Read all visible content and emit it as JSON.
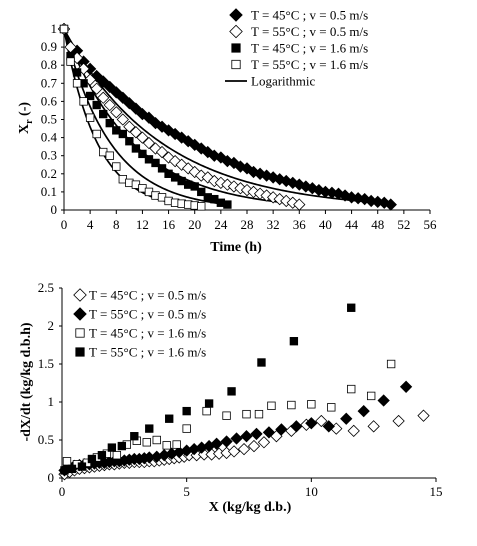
{
  "chart_data": [
    {
      "type": "scatter",
      "xlabel": "Time (h)",
      "ylabel": "Xr (-)",
      "ylabel_main": "X",
      "ylabel_sub": "r",
      "ylabel_unit": " (-)",
      "xlim": [
        0,
        56
      ],
      "ylim": [
        0,
        1
      ],
      "xticks": [
        "0",
        "4",
        "8",
        "12",
        "16",
        "20",
        "24",
        "28",
        "32",
        "36",
        "40",
        "44",
        "48",
        "52",
        "56"
      ],
      "yticks": [
        "0",
        "0.1",
        "0.2",
        "0.3",
        "0.4",
        "0.5",
        "0.6",
        "0.7",
        "0.8",
        "0.9",
        "1"
      ],
      "legend_position": "top-right",
      "series": [
        {
          "name": "T = 45°C ; v = 0.5 m/s",
          "marker": "diamond-filled",
          "x": [
            0,
            2,
            3,
            4,
            5,
            6,
            7,
            8,
            9,
            10,
            11,
            12,
            13,
            14,
            15,
            16,
            17,
            18,
            19,
            20,
            21,
            22,
            23,
            24,
            25,
            26,
            27,
            28,
            29,
            30,
            31,
            32,
            33,
            34,
            35,
            36,
            37,
            38,
            39,
            40,
            41,
            42,
            43,
            44,
            45,
            46,
            47,
            48,
            49,
            50
          ],
          "y": [
            1,
            0.88,
            0.82,
            0.78,
            0.74,
            0.71,
            0.68,
            0.65,
            0.62,
            0.59,
            0.56,
            0.53,
            0.51,
            0.48,
            0.46,
            0.44,
            0.42,
            0.4,
            0.38,
            0.36,
            0.34,
            0.32,
            0.3,
            0.29,
            0.27,
            0.26,
            0.24,
            0.23,
            0.21,
            0.2,
            0.19,
            0.18,
            0.17,
            0.16,
            0.15,
            0.14,
            0.13,
            0.12,
            0.11,
            0.1,
            0.095,
            0.09,
            0.08,
            0.07,
            0.065,
            0.06,
            0.05,
            0.045,
            0.04,
            0.03
          ]
        },
        {
          "name": "T = 55°C ; v = 0.5 m/s",
          "marker": "diamond-open",
          "x": [
            0,
            1,
            2,
            3,
            4,
            5,
            6,
            7,
            8,
            9,
            10,
            11,
            12,
            13,
            14,
            15,
            16,
            17,
            18,
            19,
            20,
            21,
            22,
            23,
            24,
            25,
            26,
            27,
            28,
            29,
            30,
            31,
            32,
            33,
            34,
            35,
            36
          ],
          "y": [
            1,
            0.9,
            0.84,
            0.78,
            0.72,
            0.67,
            0.62,
            0.58,
            0.54,
            0.5,
            0.46,
            0.43,
            0.4,
            0.37,
            0.34,
            0.32,
            0.29,
            0.27,
            0.25,
            0.23,
            0.21,
            0.19,
            0.18,
            0.16,
            0.15,
            0.14,
            0.13,
            0.12,
            0.11,
            0.1,
            0.09,
            0.08,
            0.07,
            0.06,
            0.05,
            0.04,
            0.03
          ]
        },
        {
          "name": "T = 45°C ; v = 1.6 m/s",
          "marker": "square-filled",
          "x": [
            0,
            1,
            2,
            3,
            4,
            5,
            6,
            7,
            8,
            9,
            10,
            11,
            12,
            13,
            14,
            15,
            16,
            17,
            18,
            19,
            20,
            21,
            22,
            23,
            24,
            25
          ],
          "y": [
            1,
            0.85,
            0.76,
            0.7,
            0.63,
            0.58,
            0.53,
            0.48,
            0.44,
            0.42,
            0.38,
            0.34,
            0.31,
            0.28,
            0.26,
            0.23,
            0.2,
            0.18,
            0.16,
            0.14,
            0.13,
            0.1,
            0.07,
            0.06,
            0.04,
            0.03
          ]
        },
        {
          "name": "T = 55°C ; v = 1.6 m/s",
          "marker": "square-open",
          "x": [
            0,
            1,
            2,
            3,
            4,
            5,
            6,
            7,
            8,
            9,
            10,
            11,
            12,
            13,
            14,
            15,
            16,
            17,
            18,
            19,
            20,
            21
          ],
          "y": [
            1,
            0.82,
            0.7,
            0.6,
            0.51,
            0.42,
            0.32,
            0.3,
            0.24,
            0.17,
            0.15,
            0.14,
            0.12,
            0.1,
            0.08,
            0.07,
            0.05,
            0.04,
            0.035,
            0.03,
            0.025,
            0.02
          ]
        },
        {
          "name": "Logarithmic",
          "marker": "line",
          "curves": [
            {
              "k": 0.0665,
              "x_end": 50
            },
            {
              "k": 0.095,
              "x_end": 36
            },
            {
              "k": 0.14,
              "x_end": 25
            },
            {
              "k": 0.195,
              "x_end": 20
            }
          ]
        }
      ]
    },
    {
      "type": "scatter",
      "xlabel": "X (kg/kg d.b.)",
      "ylabel": "-dX/dt (kg/kg d.b.h)",
      "xlim": [
        0,
        15
      ],
      "ylim": [
        0,
        2.5
      ],
      "xticks": [
        "0",
        "5",
        "10",
        "15"
      ],
      "yticks": [
        "0",
        "0.5",
        "1",
        "1.5",
        "2",
        "2.5"
      ],
      "legend_position": "top-left",
      "series": [
        {
          "name": "T = 45°C ; v = 0.5 m/s",
          "marker": "diamond-open",
          "x": [
            0.1,
            0.3,
            0.5,
            0.7,
            0.9,
            1.1,
            1.3,
            1.5,
            1.7,
            1.9,
            2.1,
            2.3,
            2.5,
            2.7,
            2.9,
            3.1,
            3.3,
            3.5,
            3.7,
            3.9,
            4.1,
            4.3,
            4.5,
            4.7,
            4.9,
            5.1,
            5.4,
            5.7,
            6.0,
            6.3,
            6.6,
            6.9,
            7.3,
            7.7,
            8.1,
            8.6,
            9.2,
            9.8,
            10.4,
            11.0,
            11.7,
            12.5,
            13.5,
            14.5
          ],
          "y": [
            0.05,
            0.08,
            0.1,
            0.12,
            0.13,
            0.14,
            0.15,
            0.16,
            0.17,
            0.18,
            0.18,
            0.19,
            0.2,
            0.2,
            0.21,
            0.21,
            0.21,
            0.22,
            0.22,
            0.23,
            0.24,
            0.25,
            0.26,
            0.27,
            0.28,
            0.3,
            0.3,
            0.31,
            0.31,
            0.32,
            0.33,
            0.35,
            0.38,
            0.42,
            0.47,
            0.55,
            0.62,
            0.7,
            0.75,
            0.65,
            0.62,
            0.68,
            0.75,
            0.82
          ]
        },
        {
          "name": "T = 55°C ; v = 0.5 m/s",
          "marker": "diamond-filled",
          "x": [
            0.1,
            0.3,
            0.5,
            0.7,
            0.9,
            1.1,
            1.3,
            1.5,
            1.7,
            1.9,
            2.1,
            2.3,
            2.5,
            2.7,
            2.9,
            3.1,
            3.3,
            3.5,
            3.8,
            4.1,
            4.4,
            4.7,
            5.0,
            5.3,
            5.6,
            5.9,
            6.2,
            6.6,
            7.0,
            7.4,
            7.8,
            8.3,
            8.8,
            9.4,
            10.0,
            10.7,
            11.4,
            12.1,
            12.9,
            13.8
          ],
          "y": [
            0.1,
            0.15,
            0.16,
            0.17,
            0.18,
            0.18,
            0.19,
            0.2,
            0.2,
            0.21,
            0.22,
            0.22,
            0.23,
            0.24,
            0.25,
            0.25,
            0.26,
            0.27,
            0.28,
            0.3,
            0.32,
            0.34,
            0.36,
            0.38,
            0.4,
            0.42,
            0.45,
            0.48,
            0.52,
            0.55,
            0.58,
            0.6,
            0.64,
            0.68,
            0.72,
            0.68,
            0.78,
            0.88,
            1.02,
            1.2
          ]
        },
        {
          "name": "T = 45°C ; v = 1.6 m/s",
          "marker": "square-open",
          "x": [
            0.2,
            0.6,
            1.0,
            1.4,
            1.8,
            2.2,
            2.6,
            3.0,
            3.4,
            3.8,
            4.2,
            4.6,
            5.0,
            5.8,
            6.6,
            7.4,
            7.9,
            8.4,
            9.2,
            10.0,
            10.8,
            11.6,
            12.4,
            13.2
          ],
          "y": [
            0.22,
            0.18,
            0.2,
            0.27,
            0.32,
            0.3,
            0.44,
            0.49,
            0.47,
            0.5,
            0.43,
            0.44,
            0.65,
            0.88,
            0.82,
            0.84,
            0.84,
            0.95,
            0.96,
            0.97,
            0.93,
            1.17,
            1.08,
            1.5
          ]
        },
        {
          "name": "T = 55°C ; v = 1.6 m/s",
          "marker": "square-filled",
          "x": [
            0.1,
            0.4,
            0.8,
            1.2,
            1.6,
            2.0,
            2.4,
            2.9,
            3.5,
            4.3,
            5.0,
            5.9,
            6.8,
            8.0,
            9.3,
            11.6
          ],
          "y": [
            0.1,
            0.12,
            0.15,
            0.25,
            0.3,
            0.4,
            0.42,
            0.55,
            0.65,
            0.78,
            0.88,
            0.98,
            1.14,
            1.52,
            1.8,
            2.24
          ]
        }
      ]
    }
  ]
}
